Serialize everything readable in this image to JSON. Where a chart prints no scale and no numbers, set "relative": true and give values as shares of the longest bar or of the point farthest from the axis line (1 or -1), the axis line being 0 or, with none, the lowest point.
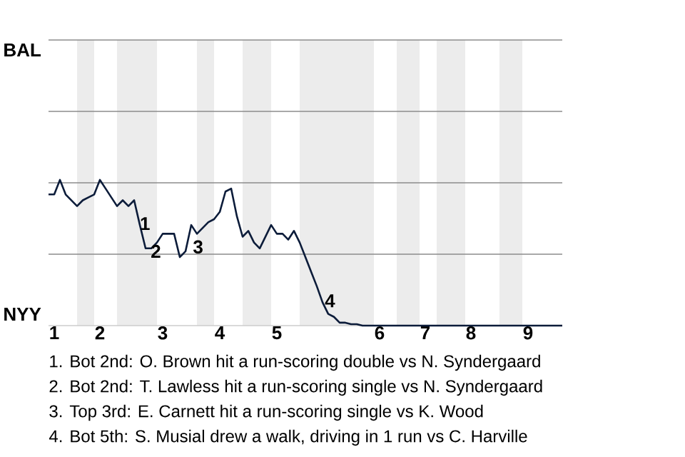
{
  "chart_data": {
    "type": "line",
    "relative": true,
    "categories": [
      null,
      "1",
      null,
      null,
      null,
      null,
      null,
      null,
      null,
      "2",
      null,
      null,
      null,
      null,
      null,
      null,
      null,
      null,
      null,
      null,
      "3",
      null,
      null,
      null,
      null,
      null,
      null,
      null,
      null,
      null,
      "4",
      null,
      null,
      null,
      null,
      null,
      null,
      null,
      null,
      null,
      "5",
      null,
      null,
      null,
      null,
      null,
      null,
      null,
      null,
      null,
      null,
      null,
      null,
      null,
      null,
      null,
      null,
      null,
      "6",
      null,
      null,
      null,
      null,
      null,
      null,
      null,
      "7",
      null,
      null,
      null,
      null,
      null,
      null,
      null,
      "8",
      null,
      null,
      null,
      null,
      null,
      null,
      null,
      null,
      null,
      "9",
      null,
      null,
      null,
      null,
      null,
      null
    ],
    "series": [
      {
        "color": "#0c1c3a",
        "values": [
          0.9,
          0.9,
          1,
          0.9,
          0.86,
          0.82,
          0.86,
          0.88,
          0.9,
          1,
          0.94,
          0.88,
          0.82,
          0.86,
          0.82,
          0.86,
          0.69,
          0.53,
          0.53,
          0.57,
          0.63,
          0.63,
          0.63,
          0.47,
          0.51,
          0.69,
          0.63,
          0.67,
          0.71,
          0.73,
          0.78,
          0.92,
          0.94,
          0.75,
          0.61,
          0.65,
          0.57,
          0.53,
          0.61,
          0.69,
          0.63,
          0.63,
          0.59,
          0.65,
          0.57,
          0.47,
          0.37,
          0.27,
          0.16,
          0.08,
          0.06,
          0.02,
          0.02,
          0.01,
          0.01,
          0,
          0,
          0,
          0,
          0,
          0,
          0,
          0,
          0,
          0,
          0,
          0,
          0,
          0,
          0,
          0,
          0,
          0,
          0,
          0,
          0,
          0,
          0,
          0,
          0,
          0,
          0,
          0,
          0,
          0,
          0,
          0,
          0,
          0,
          0,
          0
        ]
      }
    ],
    "ref_lines": [
      {
        "axis": "y",
        "value": 0.49,
        "color": "#8c8c8c"
      },
      {
        "axis": "y",
        "value": 0.98,
        "color": "#8c8c8c"
      },
      {
        "axis": "y",
        "value": 1.47,
        "color": "#8c8c8c"
      },
      {
        "axis": "y",
        "value": 1.96,
        "color": "#8c8c8c"
      }
    ],
    "annotations": [
      "BAL",
      "NYY",
      "1",
      "2",
      "3",
      "4",
      "1. Bot 2nd: O. Brown hit a run-scoring double vs N. Syndergaard",
      "2. Bot 2nd: T. Lawless hit a run-scoring single vs N. Syndergaard",
      "3. Top 3rd: E. Carnett hit a run-scoring single vs K. Wood",
      "4. Bot 5th: S. Musial drew a walk, driving in 1 run vs C. Harville"
    ]
  }
}
